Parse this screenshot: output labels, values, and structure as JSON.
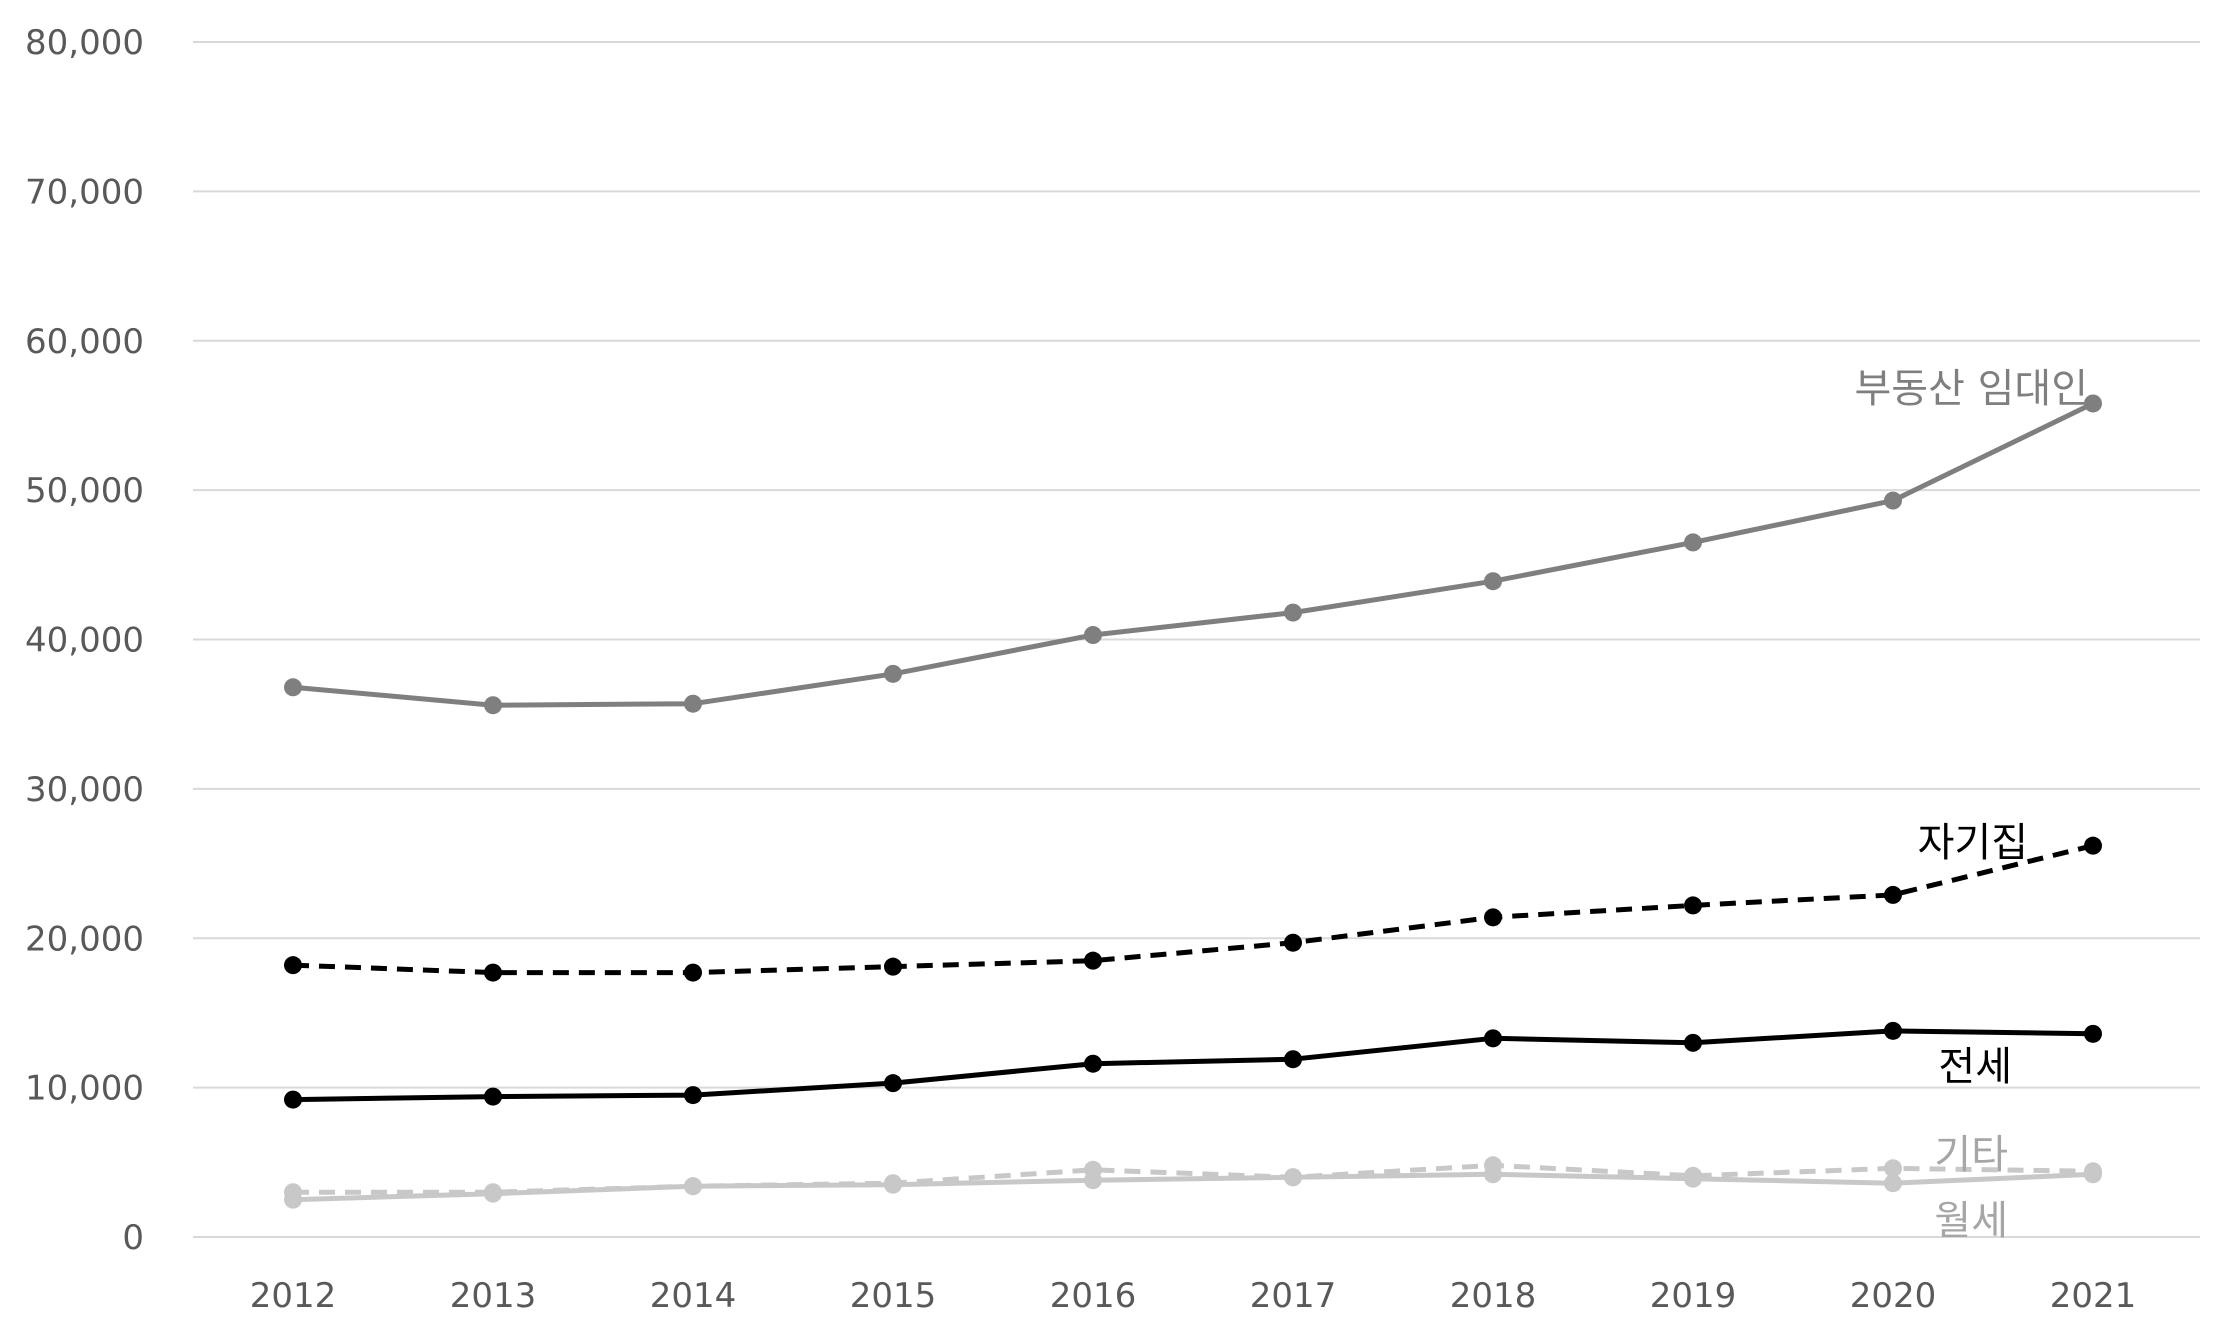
{
  "chart_data": {
    "type": "line",
    "x": [
      "2012",
      "2013",
      "2014",
      "2015",
      "2016",
      "2017",
      "2018",
      "2019",
      "2020",
      "2021"
    ],
    "ylim": [
      0,
      80000
    ],
    "y_ticks": [
      "0",
      "10,000",
      "20,000",
      "30,000",
      "40,000",
      "50,000",
      "60,000",
      "70,000",
      "80,000"
    ],
    "grid": true,
    "legend": "inline labels at right end of lines",
    "series": [
      {
        "name": "부동산 임대인",
        "values": [
          36800,
          35600,
          35700,
          37700,
          40300,
          41800,
          43900,
          46500,
          49300,
          55800
        ],
        "color": "#7f7f7f",
        "dash": "solid"
      },
      {
        "name": "자기집",
        "values": [
          18200,
          17700,
          17700,
          18100,
          18500,
          19700,
          21400,
          22200,
          22900,
          26200
        ],
        "color": "#000000",
        "dash": "dashed"
      },
      {
        "name": "전세",
        "values": [
          9200,
          9400,
          9500,
          10300,
          11600,
          11900,
          13300,
          13000,
          13800,
          13600
        ],
        "color": "#000000",
        "dash": "solid"
      },
      {
        "name": "기타",
        "values": [
          3000,
          3000,
          3400,
          3600,
          4500,
          4000,
          4800,
          4100,
          4600,
          4400
        ],
        "color": "#c8c8c8",
        "dash": "dashed"
      },
      {
        "name": "월세",
        "values": [
          2500,
          2900,
          3400,
          3500,
          3800,
          4000,
          4200,
          3900,
          3600,
          4200
        ],
        "color": "#c8c8c8",
        "dash": "solid"
      }
    ]
  }
}
